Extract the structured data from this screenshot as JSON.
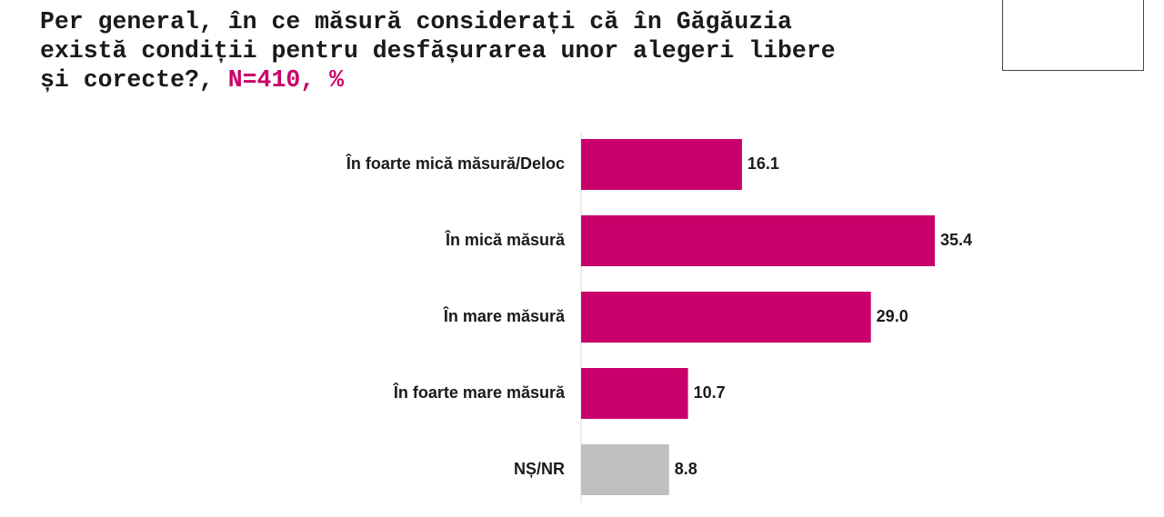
{
  "title": {
    "main": "Per general, în ce măsură considerați că în Găgăuzia\nexistă condiții pentru desfășurarea unor alegeri libere\nși corecte?,",
    "suffix": " N=410, %"
  },
  "colors": {
    "bar": "#c9006b",
    "bar_other": "#bfbfbf",
    "title_accent": "#c9006b"
  },
  "chart_data": {
    "type": "bar",
    "orientation": "horizontal",
    "categories": [
      "În foarte mică măsură/Deloc",
      "În mică măsură",
      "În mare măsură",
      "În foarte mare măsură",
      "NȘ/NR"
    ],
    "values": [
      16.1,
      35.4,
      29.0,
      10.7,
      8.8
    ],
    "value_labels": [
      "16.1",
      "35.4",
      "29.0",
      "10.7",
      "8.8"
    ],
    "bar_colors": [
      "#c9006b",
      "#c9006b",
      "#c9006b",
      "#c9006b",
      "#bfbfbf"
    ],
    "title": "",
    "xlabel": "",
    "ylabel": "",
    "xlim": [
      0,
      35.4
    ],
    "grid": false,
    "legend": "none"
  }
}
